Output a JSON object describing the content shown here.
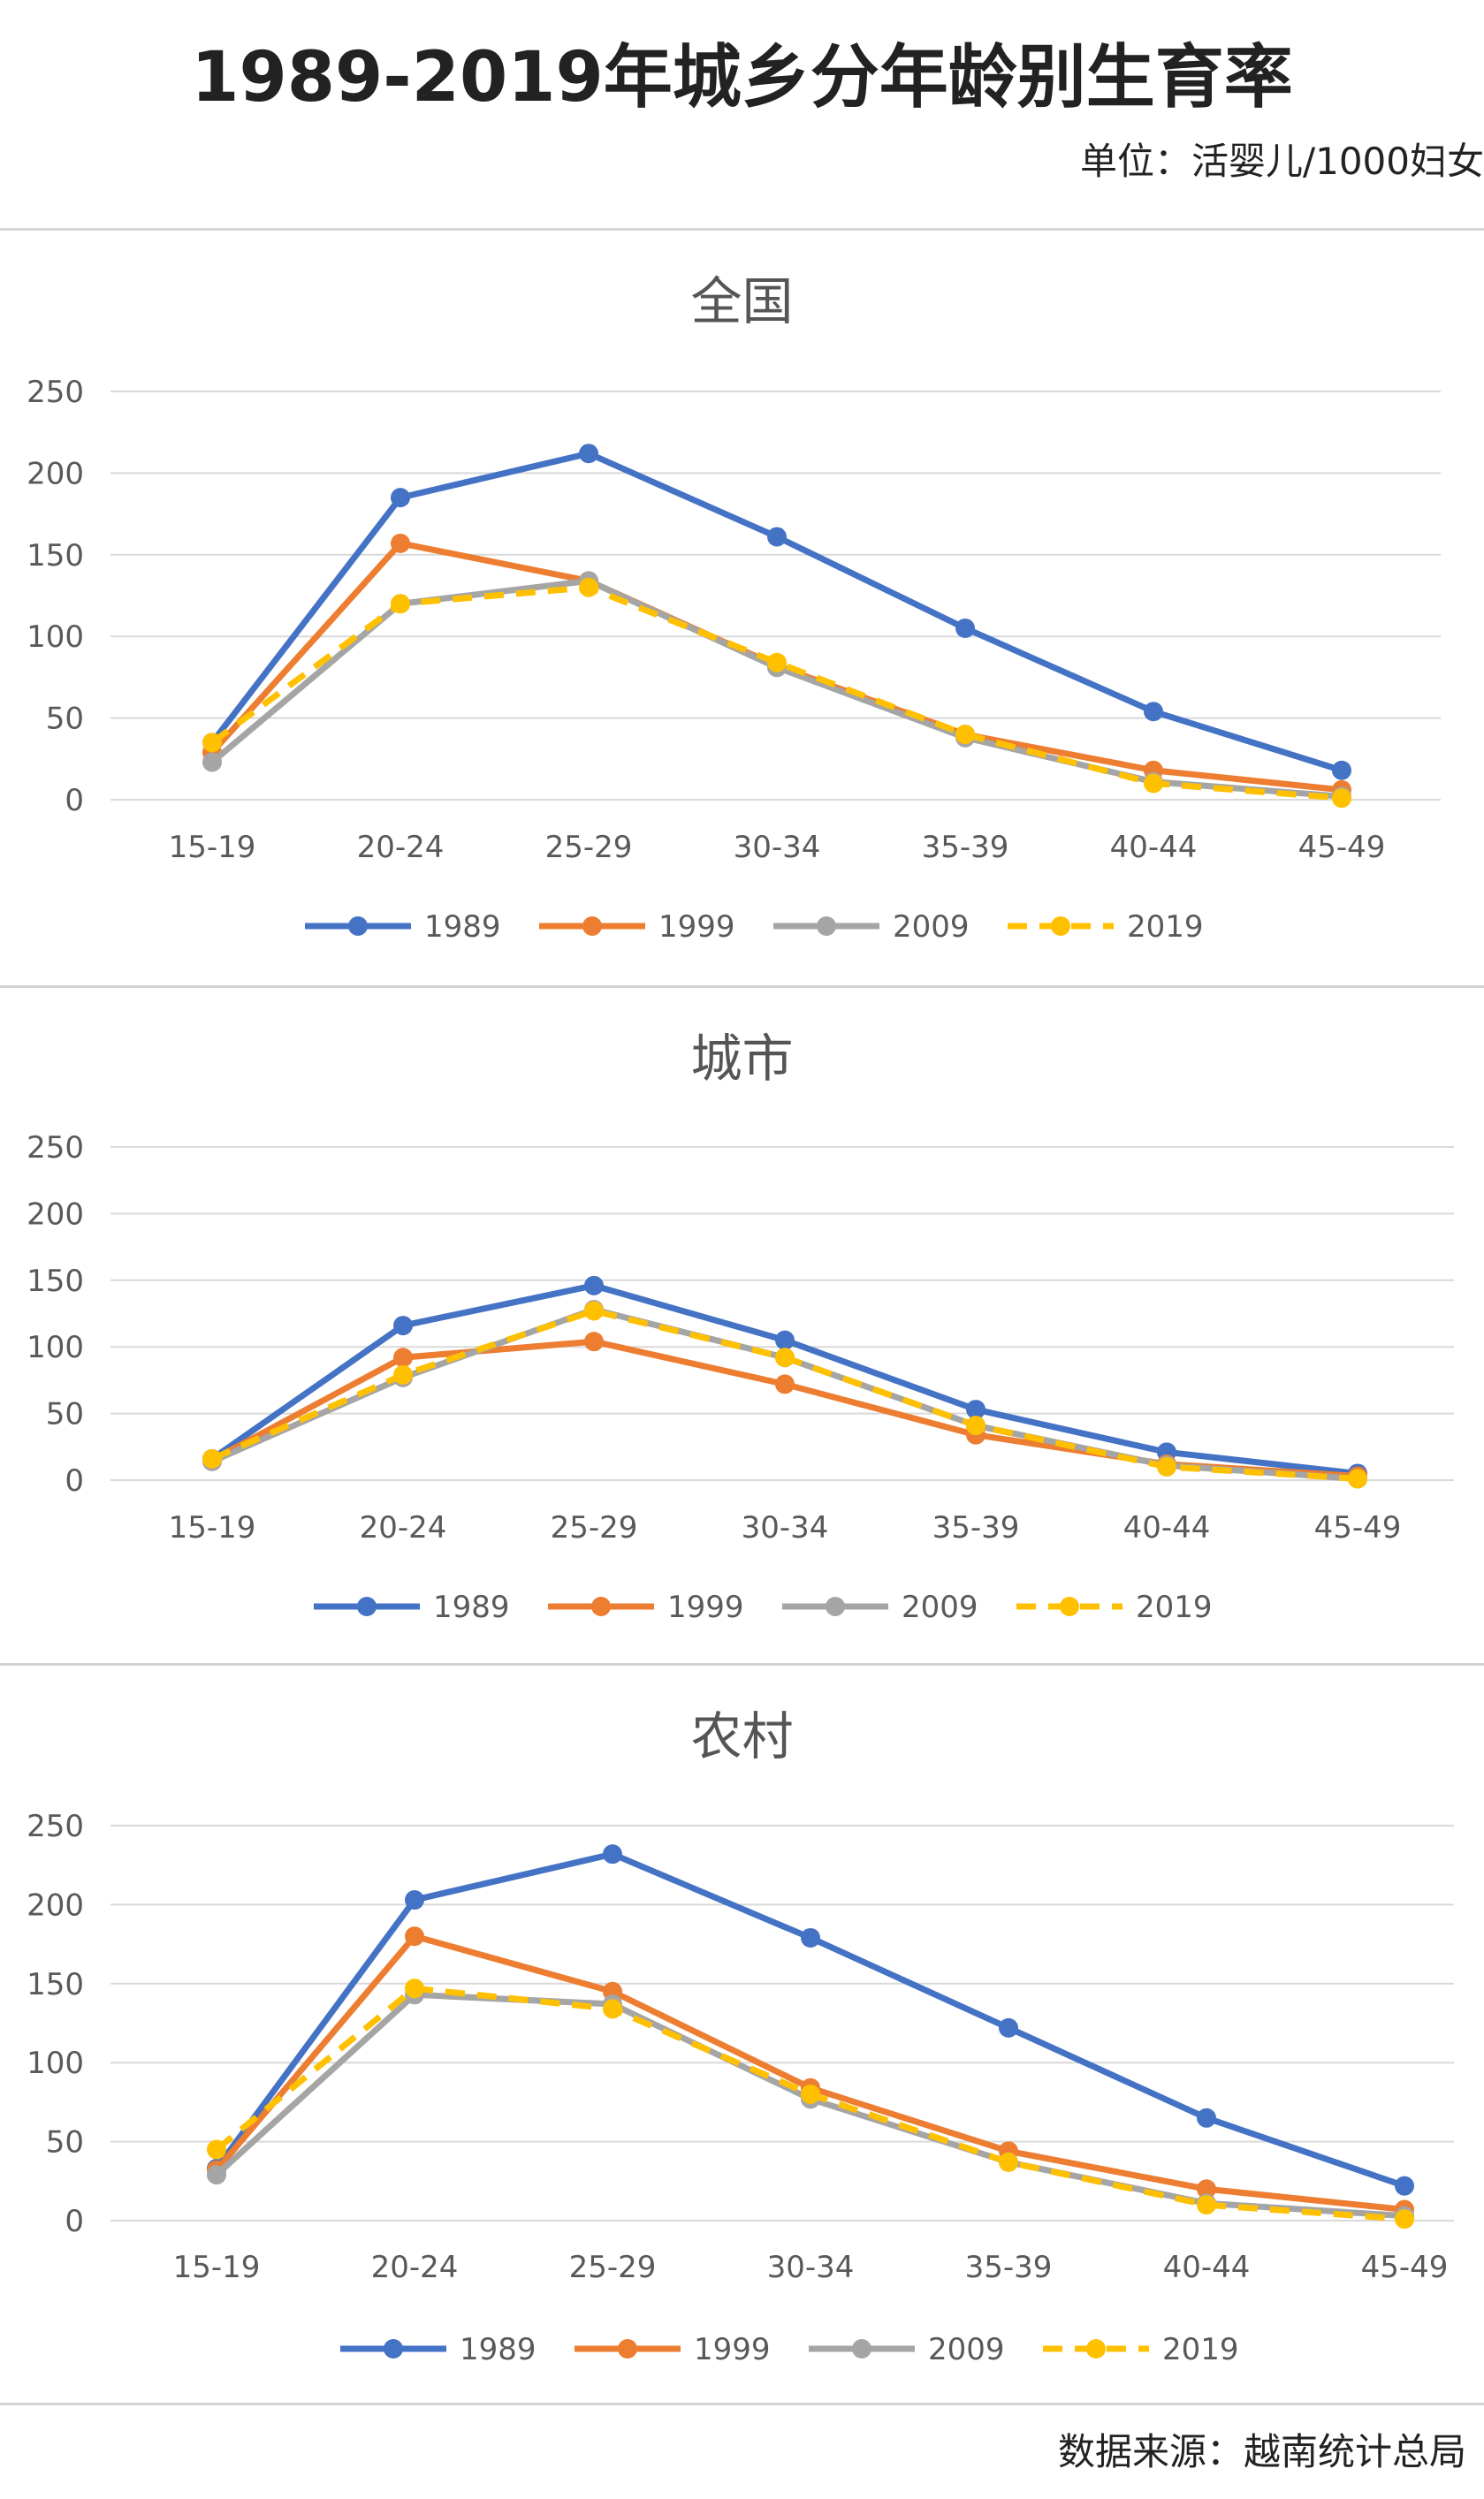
{
  "title": "1989-2019年城乡分年龄别生育率",
  "unit": "单位：活婴儿/1000妇女",
  "source": "数据来源：越南统计总局",
  "colors": {
    "1989": "#4472c4",
    "1999": "#ed7d31",
    "2009": "#a5a5a5",
    "2019": "#ffc000"
  },
  "chart_data": [
    {
      "type": "line",
      "title": "全国",
      "categories": [
        "15-19",
        "20-24",
        "25-29",
        "30-34",
        "35-39",
        "40-44",
        "45-49"
      ],
      "ylim": [
        0,
        250
      ],
      "yticks": [
        "0",
        "50",
        "100",
        "150",
        "200",
        "250"
      ],
      "grid": true,
      "legend": "bottom",
      "series": [
        {
          "name": "1989",
          "values": [
            35,
            185,
            212,
            161,
            105,
            54,
            18
          ]
        },
        {
          "name": "1999",
          "values": [
            29,
            157,
            134,
            82,
            40,
            18,
            6
          ]
        },
        {
          "name": "2009",
          "values": [
            23,
            120,
            134,
            81,
            38,
            11,
            2
          ]
        },
        {
          "name": "2019",
          "values": [
            35,
            120,
            130,
            84,
            40,
            10,
            1
          ]
        }
      ]
    },
    {
      "type": "line",
      "title": "城市",
      "categories": [
        "15-19",
        "20-24",
        "25-29",
        "30-34",
        "35-39",
        "40-44",
        "45-49"
      ],
      "ylim": [
        0,
        250
      ],
      "yticks": [
        "0",
        "50",
        "100",
        "150",
        "200",
        "250"
      ],
      "grid": true,
      "legend": "bottom",
      "series": [
        {
          "name": "1989",
          "values": [
            16,
            116,
            146,
            105,
            53,
            21,
            5
          ]
        },
        {
          "name": "1999",
          "values": [
            15,
            92,
            104,
            72,
            34,
            12,
            3
          ]
        },
        {
          "name": "2009",
          "values": [
            14,
            77,
            128,
            92,
            41,
            11,
            1
          ]
        },
        {
          "name": "2019",
          "values": [
            16,
            79,
            127,
            92,
            41,
            10,
            1
          ]
        }
      ]
    },
    {
      "type": "line",
      "title": "农村",
      "categories": [
        "15-19",
        "20-24",
        "25-29",
        "30-34",
        "35-39",
        "40-44",
        "45-49"
      ],
      "ylim": [
        0,
        250
      ],
      "yticks": [
        "0",
        "50",
        "100",
        "150",
        "200",
        "250"
      ],
      "grid": true,
      "legend": "bottom",
      "series": [
        {
          "name": "1989",
          "values": [
            33,
            203,
            232,
            179,
            122,
            65,
            22
          ]
        },
        {
          "name": "1999",
          "values": [
            32,
            180,
            145,
            84,
            44,
            20,
            7
          ]
        },
        {
          "name": "2009",
          "values": [
            29,
            143,
            137,
            77,
            37,
            11,
            3
          ]
        },
        {
          "name": "2019",
          "values": [
            45,
            147,
            134,
            80,
            37,
            10,
            1
          ]
        }
      ]
    }
  ]
}
